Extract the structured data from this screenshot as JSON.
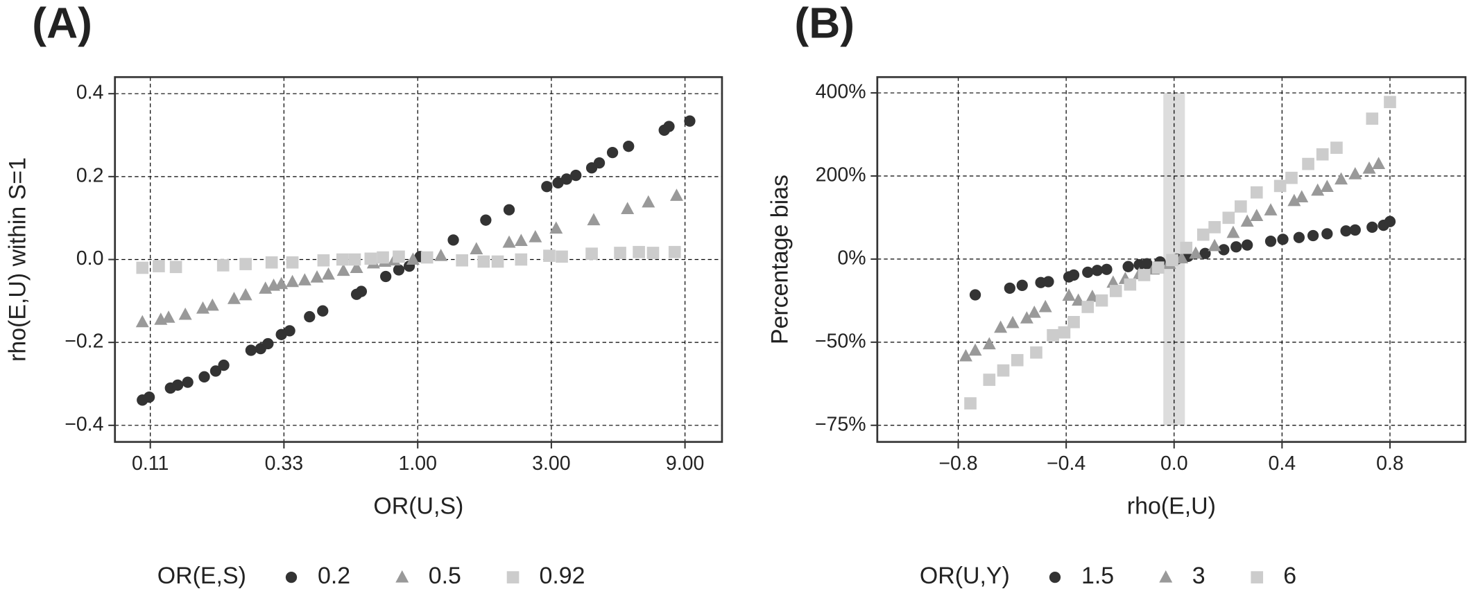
{
  "chart_data": [
    {
      "type": "scatter",
      "panel_label": "(A)",
      "xlabel": "OR(U,S)",
      "ylabel": "rho(E,U) within S=1",
      "xscale": "log",
      "xlim": [
        0.083,
        12.2
      ],
      "xticks": [
        {
          "value": 0.111,
          "label": "0.11"
        },
        {
          "value": 0.333,
          "label": "0.33"
        },
        {
          "value": 1,
          "label": "1.00"
        },
        {
          "value": 3,
          "label": "3.00"
        },
        {
          "value": 9,
          "label": "9.00"
        }
      ],
      "ylim": [
        -0.44,
        0.44
      ],
      "yticks": [
        {
          "value": -0.4,
          "label": "−0.4"
        },
        {
          "value": -0.2,
          "label": "−0.2"
        },
        {
          "value": 0,
          "label": "0.0"
        },
        0.2,
        0.4
      ],
      "grid": true,
      "legend": {
        "title": "OR(E,S)",
        "position": "bottom"
      },
      "series": [
        {
          "name": "0.2",
          "color": "#333333",
          "marker": "circle",
          "x": [
            0.104,
            0.11,
            0.131,
            0.139,
            0.151,
            0.173,
            0.19,
            0.203,
            0.254,
            0.275,
            0.292,
            0.326,
            0.349,
            0.411,
            0.458,
            0.605,
            0.629,
            0.769,
            0.856,
            0.933,
            1.02,
            1.34,
            1.75,
            2.12,
            2.89,
            3.17,
            3.4,
            3.67,
            4.18,
            4.45,
            4.96,
            5.66,
            7.59,
            7.89,
            9.36
          ],
          "values": [
            -0.339,
            -0.332,
            -0.31,
            -0.303,
            -0.296,
            -0.283,
            -0.269,
            -0.255,
            -0.219,
            -0.215,
            -0.203,
            -0.181,
            -0.172,
            -0.138,
            -0.124,
            -0.084,
            -0.077,
            -0.041,
            -0.025,
            -0.016,
            0.007,
            0.047,
            0.095,
            0.12,
            0.176,
            0.185,
            0.194,
            0.203,
            0.221,
            0.233,
            0.258,
            0.273,
            0.312,
            0.321,
            0.334
          ]
        },
        {
          "name": "0.5",
          "color": "#999999",
          "marker": "triangle",
          "x": [
            0.104,
            0.121,
            0.129,
            0.148,
            0.171,
            0.185,
            0.221,
            0.243,
            0.286,
            0.306,
            0.326,
            0.357,
            0.395,
            0.437,
            0.48,
            0.543,
            0.605,
            0.695,
            0.763,
            0.824,
            0.962,
            1.21,
            1.62,
            2.12,
            2.34,
            2.63,
            3.12,
            4.25,
            5.61,
            6.66,
            8.4
          ],
          "values": [
            -0.151,
            -0.145,
            -0.14,
            -0.133,
            -0.118,
            -0.111,
            -0.095,
            -0.086,
            -0.07,
            -0.063,
            -0.059,
            -0.054,
            -0.05,
            -0.043,
            -0.036,
            -0.027,
            -0.02,
            -0.009,
            -0.005,
            -0.002,
            0,
            0.009,
            0.025,
            0.041,
            0.045,
            0.054,
            0.075,
            0.095,
            0.122,
            0.138,
            0.154
          ]
        },
        {
          "name": "0.92",
          "color": "#cccccc",
          "marker": "square",
          "x": [
            0.104,
            0.119,
            0.137,
            0.202,
            0.243,
            0.301,
            0.357,
            0.461,
            0.539,
            0.596,
            0.679,
            0.751,
            0.856,
            1.08,
            1.44,
            1.72,
            1.93,
            2.34,
            2.95,
            3.27,
            4.18,
            5.28,
            6.16,
            6.92,
            8.27
          ],
          "values": [
            -0.02,
            -0.016,
            -0.018,
            -0.014,
            -0.011,
            -0.007,
            -0.007,
            -0.002,
            0,
            0,
            0.002,
            0.005,
            0.007,
            0.005,
            -0.002,
            -0.005,
            -0.005,
            0,
            0.009,
            0.007,
            0.014,
            0.016,
            0.018,
            0.016,
            0.018
          ]
        }
      ]
    },
    {
      "type": "scatter",
      "panel_label": "(B)",
      "xlabel": "rho(E,U)",
      "ylabel": "Percentage bias",
      "xlim": [
        -1.1,
        1.08
      ],
      "xticks": [
        {
          "value": -0.8,
          "label": "−0.8"
        },
        {
          "value": -0.4,
          "label": "−0.4"
        },
        {
          "value": 0,
          "label": "0.0"
        },
        0.4,
        0.8
      ],
      "yscale": "tick-spaced",
      "ylim": [
        -80,
        438
      ],
      "yticks": [
        {
          "value": -75,
          "label": "−75%"
        },
        {
          "value": -50,
          "label": "−50%"
        },
        {
          "value": 0,
          "label": "0%"
        },
        {
          "value": 200,
          "label": "200%"
        },
        {
          "value": 400,
          "label": "400%"
        }
      ],
      "grid": true,
      "highlight": {
        "x": [
          -0.04,
          0.04
        ],
        "color": "#dddddd"
      },
      "legend": {
        "title": "OR(U,Y)",
        "position": "bottom"
      },
      "series": [
        {
          "name": "1.5",
          "color": "#333333",
          "marker": "circle",
          "x": [
            -0.737,
            -0.609,
            -0.563,
            -0.494,
            -0.466,
            -0.39,
            -0.372,
            -0.32,
            -0.285,
            -0.25,
            -0.17,
            -0.129,
            -0.101,
            -0.052,
            0.01,
            0.052,
            0.115,
            0.184,
            0.23,
            0.271,
            0.358,
            0.403,
            0.463,
            0.515,
            0.567,
            0.637,
            0.671,
            0.734,
            0.776,
            0.8
          ],
          "values": [
            -21.5,
            -17.5,
            -15.8,
            -14.1,
            -13.6,
            -10.7,
            -9.6,
            -7.9,
            -6.8,
            -6.2,
            -4.5,
            -3.4,
            -2.8,
            -1.7,
            0,
            6.8,
            13.6,
            22.6,
            29.4,
            33.9,
            42.9,
            47.5,
            52,
            56.5,
            61,
            67.8,
            70,
            76.8,
            81.4,
            90.4
          ]
        },
        {
          "name": "3",
          "color": "#999999",
          "marker": "triangle",
          "x": [
            -0.772,
            -0.737,
            -0.685,
            -0.643,
            -0.598,
            -0.546,
            -0.518,
            -0.477,
            -0.39,
            -0.355,
            -0.303,
            -0.226,
            -0.181,
            -0.129,
            -0.077,
            -0.017,
            0.028,
            0.08,
            0.15,
            0.219,
            0.271,
            0.306,
            0.358,
            0.445,
            0.473,
            0.532,
            0.567,
            0.619,
            0.671,
            0.723,
            0.758
          ],
          "values": [
            -54.2,
            -52.5,
            -50.6,
            -41.2,
            -38.4,
            -35.6,
            -32.2,
            -28.8,
            -22.0,
            -24.9,
            -22.6,
            -14.1,
            -11.9,
            -9.0,
            -6.2,
            -2.8,
            2.3,
            13.6,
            31.6,
            63.3,
            90.4,
            104,
            117.5,
            140,
            149,
            165,
            174,
            192,
            204.5,
            218,
            229
          ]
        },
        {
          "name": "6",
          "color": "#cccccc",
          "marker": "square",
          "x": [
            -0.755,
            -0.685,
            -0.633,
            -0.581,
            -0.511,
            -0.449,
            -0.407,
            -0.372,
            -0.32,
            -0.268,
            -0.216,
            -0.163,
            -0.111,
            -0.059,
            -0.007,
            0.045,
            0.108,
            0.15,
            0.202,
            0.247,
            0.306,
            0.393,
            0.435,
            0.497,
            0.55,
            0.602,
            0.734,
            0.8
          ],
          "values": [
            -68.4,
            -61.3,
            -58.5,
            -55.4,
            -53.1,
            -45.8,
            -44.1,
            -37.9,
            -28.8,
            -24.9,
            -19.2,
            -15.3,
            -9.6,
            -5.1,
            -0.6,
            27.1,
            58.8,
            76.8,
            99.4,
            126.6,
            160.5,
            176,
            195.5,
            229,
            252,
            268,
            338,
            378
          ]
        }
      ]
    }
  ]
}
